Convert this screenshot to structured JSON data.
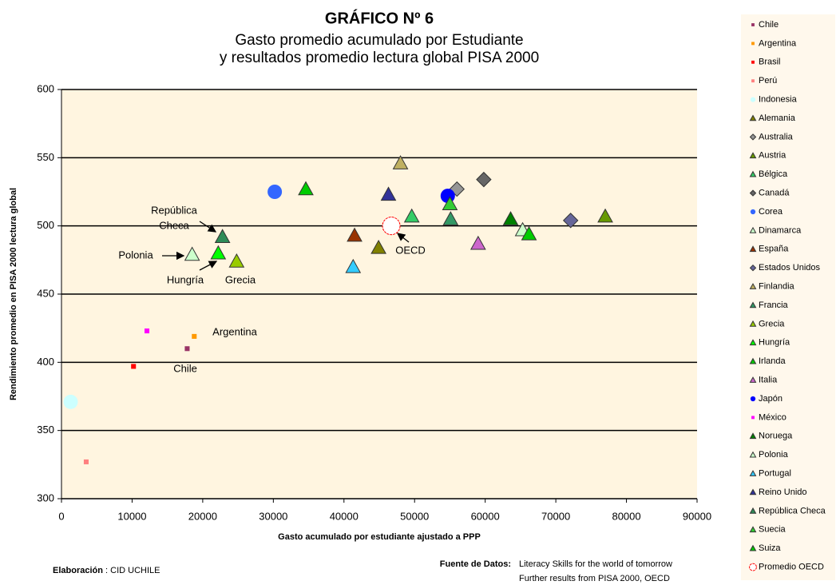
{
  "chart_data": {
    "type": "scatter",
    "title": "GRÁFICO Nº 6",
    "subtitle": [
      "Gasto promedio acumulado por Estudiante",
      "y resultados promedio lectura global PISA 2000"
    ],
    "x_label": "Gasto acumulado por estudiante ajustado a PPP",
    "y_label": "Rendimiento promedio en PISA 2000 lectura global",
    "xlim": [
      0,
      90000
    ],
    "xticks": [
      0,
      10000,
      20000,
      30000,
      40000,
      50000,
      60000,
      70000,
      80000,
      90000
    ],
    "ylim": [
      300,
      600
    ],
    "yticks": [
      300,
      350,
      400,
      450,
      500,
      550,
      600
    ],
    "grid": true,
    "legend": "right",
    "series": [
      {
        "name": "Chile",
        "color": "#993366",
        "marker": "square",
        "x": [
          17800
        ],
        "y": [
          410
        ]
      },
      {
        "name": "Argentina",
        "color": "#ff9900",
        "marker": "square",
        "x": [
          18800
        ],
        "y": [
          419
        ]
      },
      {
        "name": "Brasil",
        "color": "#ff0000",
        "marker": "square",
        "x": [
          10200
        ],
        "y": [
          397
        ]
      },
      {
        "name": "Perú",
        "color": "#ff8080",
        "marker": "square",
        "x": [
          3500
        ],
        "y": [
          327
        ]
      },
      {
        "name": "Indonesia",
        "color": "#ccffff",
        "marker": "circle",
        "x": [
          1300
        ],
        "y": [
          371
        ]
      },
      {
        "name": "Alemania",
        "color": "#808000",
        "marker": "triangle",
        "x": [
          44900
        ],
        "y": [
          484
        ]
      },
      {
        "name": "Australia",
        "color": "#969696",
        "marker": "diamond",
        "x": [
          56000
        ],
        "y": [
          527
        ]
      },
      {
        "name": "Austria",
        "color": "#669900",
        "marker": "triangle",
        "x": [
          77000
        ],
        "y": [
          507
        ]
      },
      {
        "name": "Bélgica",
        "color": "#33cc66",
        "marker": "triangle",
        "x": [
          49600
        ],
        "y": [
          507
        ]
      },
      {
        "name": "Canadá",
        "color": "#666666",
        "marker": "diamond",
        "x": [
          59800
        ],
        "y": [
          534
        ]
      },
      {
        "name": "Corea",
        "color": "#3366ff",
        "marker": "circle",
        "x": [
          30200
        ],
        "y": [
          525
        ]
      },
      {
        "name": "Dinamarca",
        "color": "#ccffcc",
        "marker": "triangle",
        "x": [
          65300
        ],
        "y": [
          497
        ]
      },
      {
        "name": "España",
        "color": "#993300",
        "marker": "triangle",
        "x": [
          41500
        ],
        "y": [
          493
        ]
      },
      {
        "name": "Estados Unidos",
        "color": "#666699",
        "marker": "diamond",
        "x": [
          72100
        ],
        "y": [
          504
        ]
      },
      {
        "name": "Finlandia",
        "color": "#c0b060",
        "marker": "triangle",
        "x": [
          48000
        ],
        "y": [
          546
        ]
      },
      {
        "name": "Francia",
        "color": "#339966",
        "marker": "triangle",
        "x": [
          55100
        ],
        "y": [
          505
        ]
      },
      {
        "name": "Grecia",
        "color": "#99cc00",
        "marker": "triangle",
        "x": [
          24800
        ],
        "y": [
          474
        ]
      },
      {
        "name": "Hungría",
        "color": "#00ff00",
        "marker": "triangle",
        "x": [
          22200
        ],
        "y": [
          480
        ]
      },
      {
        "name": "Irlanda",
        "color": "#00cc00",
        "marker": "triangle",
        "x": [
          34600
        ],
        "y": [
          527
        ]
      },
      {
        "name": "Italia",
        "color": "#cc66cc",
        "marker": "triangle",
        "x": [
          59000
        ],
        "y": [
          487
        ]
      },
      {
        "name": "Japón",
        "color": "#0000ff",
        "marker": "circle",
        "x": [
          54700
        ],
        "y": [
          522
        ]
      },
      {
        "name": "México",
        "color": "#ff00ff",
        "marker": "square",
        "x": [
          12100
        ],
        "y": [
          423
        ]
      },
      {
        "name": "Noruega",
        "color": "#008000",
        "marker": "triangle",
        "x": [
          63600
        ],
        "y": [
          505
        ]
      },
      {
        "name": "Polonia",
        "color": "#ccffcc",
        "marker": "triangle",
        "x": [
          18500
        ],
        "y": [
          479
        ]
      },
      {
        "name": "Portugal",
        "color": "#33ccff",
        "marker": "triangle",
        "x": [
          41300
        ],
        "y": [
          470
        ]
      },
      {
        "name": "Reino Unido",
        "color": "#333399",
        "marker": "triangle",
        "x": [
          46300
        ],
        "y": [
          523
        ]
      },
      {
        "name": "República Checa",
        "color": "#2e8b57",
        "marker": "triangle",
        "x": [
          22800
        ],
        "y": [
          492
        ]
      },
      {
        "name": "Suecia",
        "color": "#33cc33",
        "marker": "triangle",
        "x": [
          55000
        ],
        "y": [
          516
        ]
      },
      {
        "name": "Suiza",
        "color": "#00cc00",
        "marker": "triangle",
        "x": [
          66200
        ],
        "y": [
          494
        ]
      },
      {
        "name": "Promedio OECD",
        "color": "#ff0000",
        "marker": "ring",
        "x": [
          46700
        ],
        "y": [
          500
        ]
      }
    ],
    "annotations": [
      "República",
      "Checa",
      "Polonia",
      "Hungría",
      "Grecia",
      "OECD",
      "Argentina",
      "Chile"
    ]
  },
  "footer": {
    "credit_label": "Elaboración",
    "credit": " : CID UCHILE",
    "source_label": "Fuente de Datos:",
    "source": [
      "Literacy Skills for the world of tomorrow",
      "Further results from PISA 2000, OECD"
    ]
  }
}
